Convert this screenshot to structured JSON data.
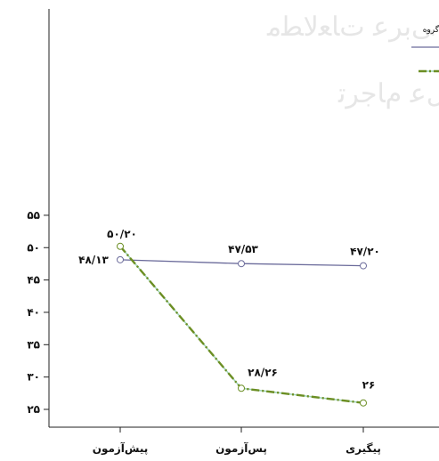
{
  "chart_data": {
    "type": "line",
    "categories": [
      "پیش‌آزمون",
      "پس‌آزمون",
      "پیگیری"
    ],
    "ylim": [
      24,
      57
    ],
    "yticks": [
      25,
      30,
      35,
      40,
      45,
      50,
      55
    ],
    "ytick_labels": [
      "۲۵",
      "۳۰",
      "۳۵",
      "۴۰",
      "۴۵",
      "۵۰",
      "۵۵"
    ],
    "grid": false,
    "legend": {
      "position": "top-right",
      "title": "گروه",
      "entries": [
        "",
        ""
      ]
    },
    "series": [
      {
        "key": "flat",
        "values": [
          48.13,
          47.53,
          47.2
        ],
        "labels": [
          "۴۸/۱۳",
          "۴۷/۵۳",
          "۴۷/۲۰"
        ],
        "color": "#6a6a9a",
        "style": "solid"
      },
      {
        "key": "drop",
        "values": [
          50.2,
          28.26,
          26
        ],
        "labels": [
          "۵۰/۲۰",
          "۲۸/۲۶",
          "۲۶"
        ],
        "color": "#6b8e23",
        "style": "dash-dot"
      }
    ],
    "watermark": [
      "ﻡﻭﻝﻋ ﻡﺎﺟﺮﺗ",
      "ﯽﺑﺮﻋ ﺕﺎﻌﻟﺎﻄﻣ"
    ]
  }
}
